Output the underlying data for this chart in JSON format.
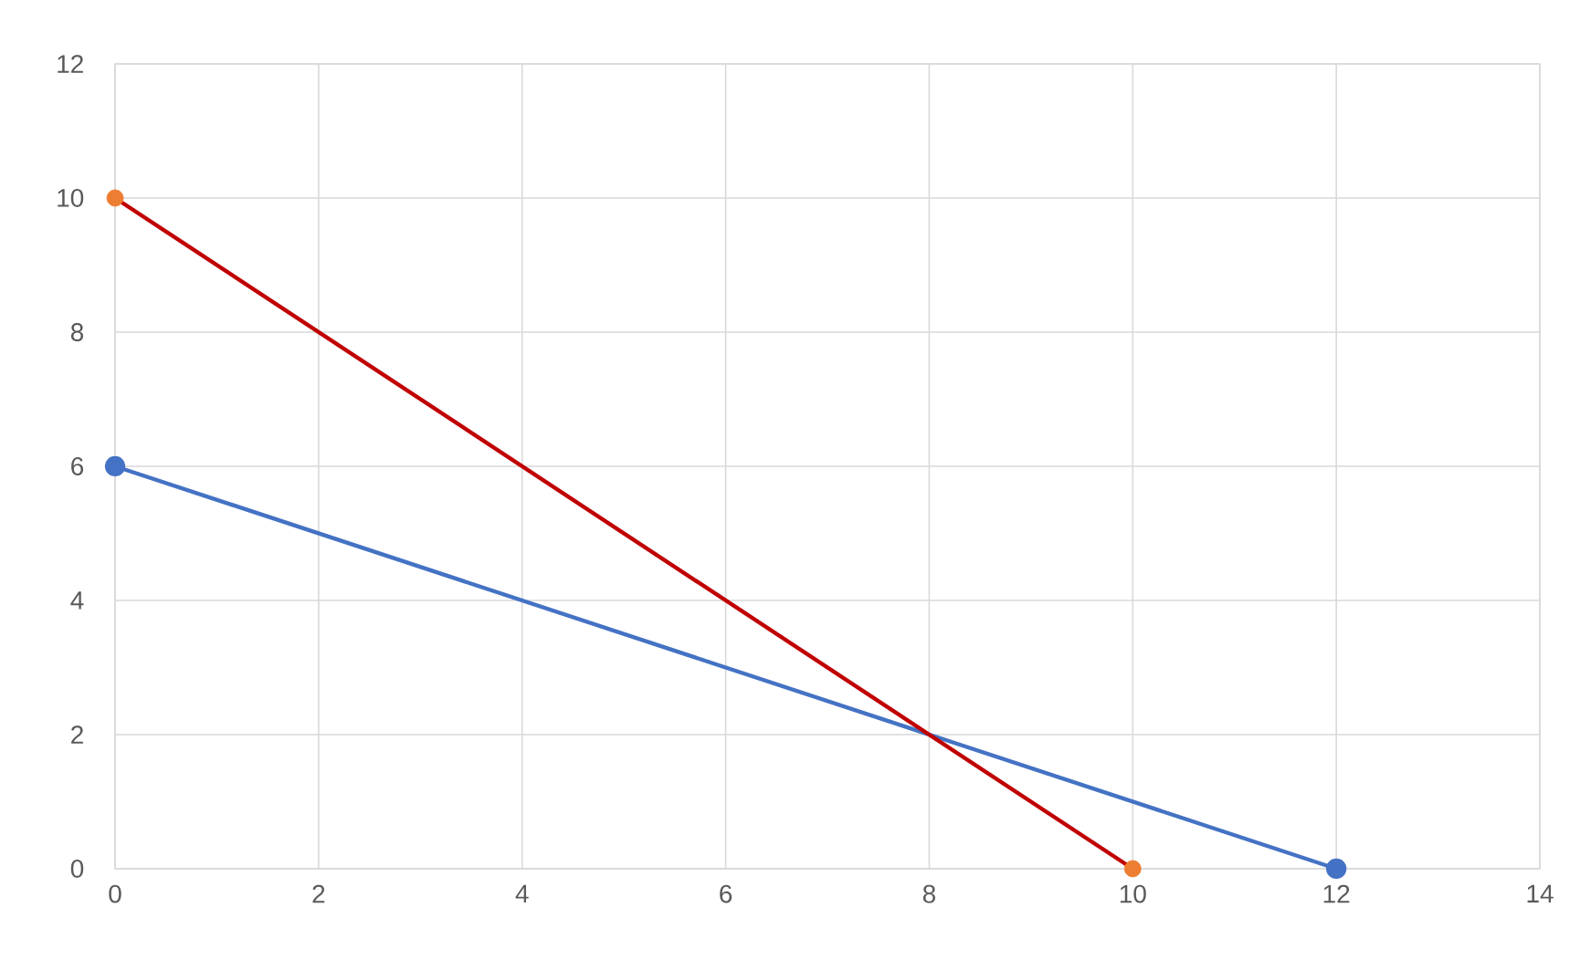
{
  "chart_data": {
    "type": "line",
    "xlim": [
      0,
      14
    ],
    "ylim": [
      0,
      12
    ],
    "xticks": [
      0,
      2,
      4,
      6,
      8,
      10,
      12,
      14
    ],
    "yticks": [
      0,
      2,
      4,
      6,
      8,
      10,
      12
    ],
    "grid": true,
    "series": [
      {
        "color": "#4472c4",
        "x": [
          0,
          12
        ],
        "values": [
          6,
          0
        ],
        "marker": "circle"
      },
      {
        "color": "#c00000",
        "x": [
          0,
          10
        ],
        "values": [
          10,
          0
        ],
        "marker": "none"
      },
      {
        "type": "scatter",
        "color": "#ed7d31",
        "x": [
          0,
          10
        ],
        "values": [
          10,
          0
        ],
        "marker": "circle"
      }
    ]
  }
}
